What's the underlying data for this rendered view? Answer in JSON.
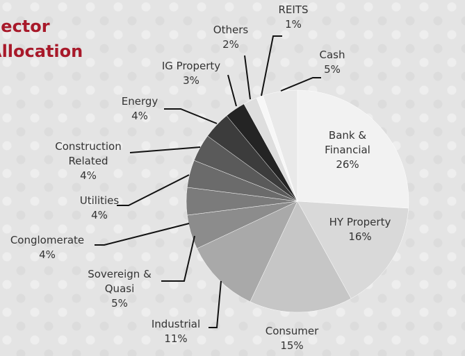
{
  "chart_data": {
    "type": "pie",
    "title": [
      "Sector",
      "Allocation"
    ],
    "categories": [
      [
        "Bank &",
        "Financial"
      ],
      [
        "HY Property"
      ],
      [
        "Consumer"
      ],
      [
        "Industrial"
      ],
      [
        "Sovereign &",
        "Quasi"
      ],
      [
        "Conglomerate"
      ],
      [
        "Utilities"
      ],
      [
        "Construction",
        "Related"
      ],
      [
        "Energy"
      ],
      [
        "IG Property"
      ],
      [
        "Others"
      ],
      [
        "REITS"
      ],
      [
        "Cash"
      ]
    ],
    "values": [
      26,
      16,
      15,
      11,
      5,
      4,
      4,
      4,
      4,
      3,
      2,
      1,
      5
    ],
    "value_labels": [
      "26%",
      "16%",
      "15%",
      "11%",
      "5%",
      "4%",
      "4%",
      "4%",
      "4%",
      "3%",
      "2%",
      "1%",
      "5%"
    ],
    "colors": [
      "#f2f2f2",
      "#d9d9d9",
      "#c6c6c6",
      "#a9a9a9",
      "#8c8c8c",
      "#7b7b7b",
      "#6b6b6b",
      "#5a5a5a",
      "#3c3c3c",
      "#242424",
      "#dedede",
      "#f7f7f7",
      "#e9e9e9"
    ]
  }
}
